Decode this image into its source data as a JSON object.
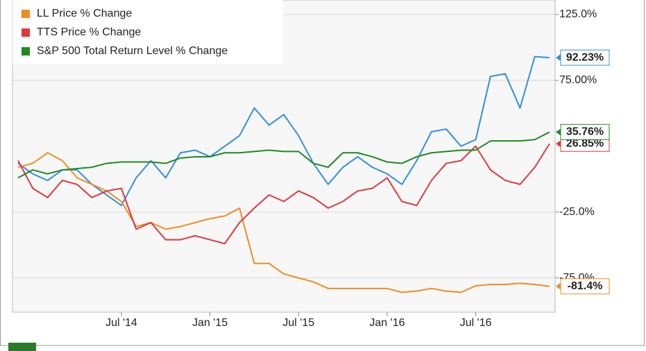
{
  "chart_data": {
    "type": "line",
    "x": [
      "2013-12",
      "2014-01",
      "2014-02",
      "2014-03",
      "2014-04",
      "2014-05",
      "2014-06",
      "2014-07",
      "2014-08",
      "2014-09",
      "2014-10",
      "2014-11",
      "2014-12",
      "2015-01",
      "2015-02",
      "2015-03",
      "2015-04",
      "2015-05",
      "2015-06",
      "2015-07",
      "2015-08",
      "2015-09",
      "2015-10",
      "2015-11",
      "2015-12",
      "2016-01",
      "2016-02",
      "2016-03",
      "2016-04",
      "2016-05",
      "2016-06",
      "2016-07",
      "2016-08",
      "2016-09",
      "2016-10",
      "2016-11",
      "2016-12"
    ],
    "xlim": [
      "2013-12",
      "2016-12"
    ],
    "xticks": [
      {
        "value": "2014-07",
        "label": "Jul '14"
      },
      {
        "value": "2015-01",
        "label": "Jan '15"
      },
      {
        "value": "2015-07",
        "label": "Jul '15"
      },
      {
        "value": "2016-01",
        "label": "Jan '16"
      },
      {
        "value": "2016-07",
        "label": "Jul '16"
      }
    ],
    "ylim": [
      -101,
      136
    ],
    "yticks": [
      {
        "value": 125,
        "label": "125.0%"
      },
      {
        "value": 75,
        "label": "75.00%"
      },
      {
        "value": -25,
        "label": "-25.0%"
      },
      {
        "value": -75,
        "label": "-75.0%"
      }
    ],
    "grid": true,
    "series": [
      {
        "color": "#2f8fe0",
        "last_label": "92.23%",
        "values": [
          12,
          4,
          -1,
          7,
          7,
          -4,
          -12,
          -20,
          1,
          14,
          1,
          20,
          22,
          17,
          25,
          33,
          54,
          41,
          49,
          33,
          12,
          -4,
          9,
          17,
          9,
          4,
          -4,
          14,
          36,
          38,
          25,
          30,
          78,
          80,
          54,
          93,
          92.23
        ]
      },
      {
        "name": "LL Price % Change",
        "color": "#f28c1e",
        "last_label": "-81.4%",
        "values": [
          9,
          12,
          20,
          14,
          1,
          -4,
          -9,
          -17,
          -36,
          -33,
          -38,
          -36,
          -33,
          -30,
          -28,
          -22,
          -64,
          -64,
          -72,
          -75,
          -78,
          -83,
          -83,
          -83,
          -83,
          -83,
          -86,
          -85,
          -83,
          -85,
          -86,
          -81,
          -80,
          -80,
          -79,
          -80,
          -81.4
        ]
      },
      {
        "name": "TTS Price % Change",
        "color": "#e0373c",
        "last_label": "26.85%",
        "values": [
          14,
          -7,
          -14,
          -1,
          -4,
          -14,
          -9,
          -7,
          -38,
          -33,
          -46,
          -46,
          -43,
          -46,
          -49,
          -33,
          -22,
          -12,
          -17,
          -9,
          -14,
          -22,
          -17,
          -9,
          -7,
          1,
          -17,
          -20,
          -1,
          12,
          14,
          25,
          7,
          -1,
          -4,
          9,
          26.85
        ]
      },
      {
        "name": "S&P 500 Total Return Level % Change",
        "color": "#1e8a1e",
        "last_label": "35.76%",
        "values": [
          1,
          7,
          4,
          7,
          8,
          9,
          12,
          13,
          13,
          13,
          12,
          16,
          17,
          17,
          20,
          20,
          21,
          22,
          21,
          21,
          12,
          9,
          20,
          20,
          17,
          13,
          12,
          17,
          20,
          21,
          22,
          22,
          29,
          29,
          29,
          30,
          35.76
        ]
      }
    ]
  }
}
